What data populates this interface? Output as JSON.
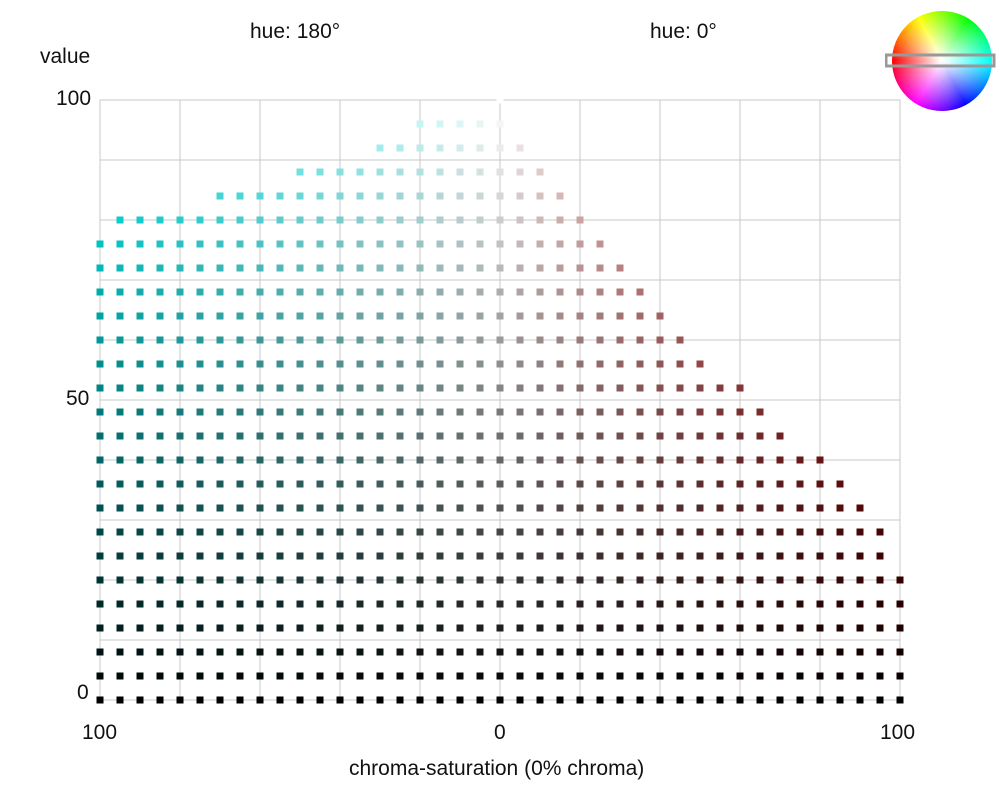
{
  "hue_left_label": "hue: 180°",
  "hue_right_label": "hue: 0°",
  "ylabel": "value",
  "xlabel": "chroma-saturation (0% chroma)",
  "colors": {
    "left_hue": "#00ffff",
    "right_hue": "#ff0000",
    "grid": "#c8c8c8",
    "wheel_marker": "#999999"
  },
  "chart_data": {
    "type": "scatter",
    "title": "",
    "xlabel": "chroma-saturation (0% chroma)",
    "ylabel": "value",
    "x_ticks": [
      "100",
      "0",
      "100"
    ],
    "y_ticks": [
      "0",
      "50",
      "100"
    ],
    "xlim": [
      -100,
      100
    ],
    "ylim": [
      0,
      100
    ],
    "grid": true,
    "series": [
      {
        "hue": 180,
        "x": [
          0,
          5,
          10,
          15,
          20,
          25,
          30,
          35,
          40,
          45,
          50,
          55,
          60,
          65,
          70,
          75,
          80,
          85,
          90,
          95,
          100
        ],
        "max_value": [
          100,
          99,
          98,
          97,
          96,
          94,
          93,
          91,
          90,
          89,
          88,
          87,
          86,
          85,
          84,
          83,
          82,
          82,
          81,
          80,
          79
        ]
      },
      {
        "hue": 0,
        "x": [
          0,
          5,
          10,
          15,
          20,
          25,
          30,
          35,
          40,
          45,
          50,
          55,
          60,
          65,
          70,
          75,
          80,
          85,
          90,
          95,
          100
        ],
        "max_value": [
          100,
          94,
          89,
          84,
          80,
          76,
          72,
          68,
          64,
          61,
          58,
          55,
          52,
          49,
          46,
          43,
          40,
          37,
          34,
          30,
          22
        ]
      }
    ]
  }
}
